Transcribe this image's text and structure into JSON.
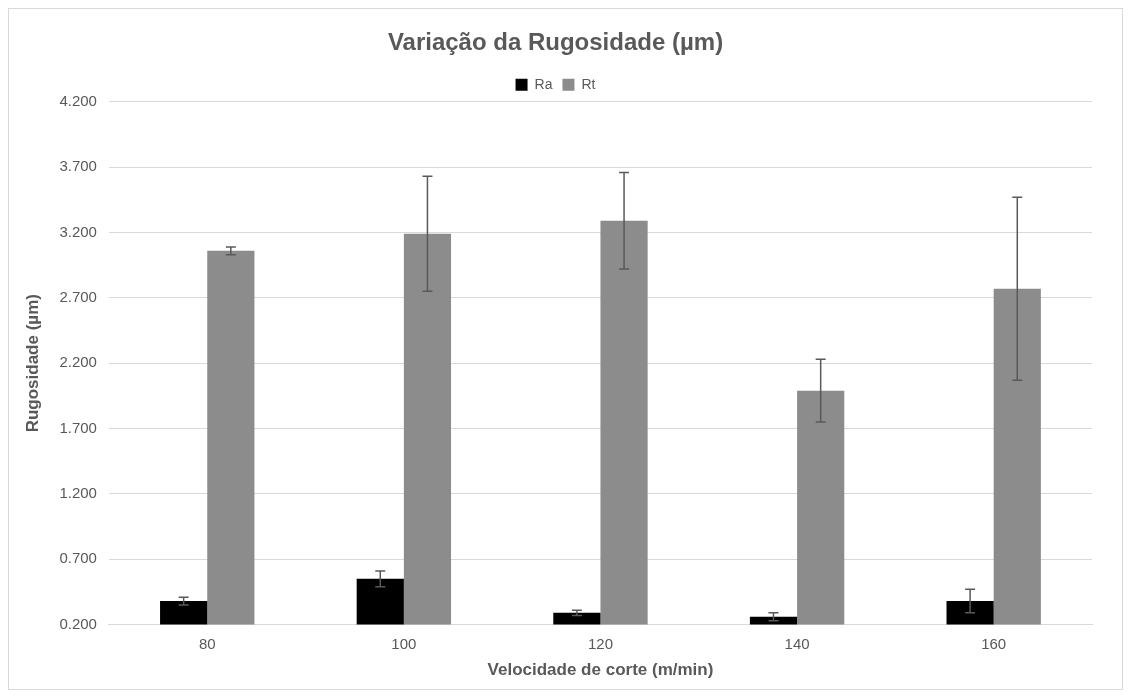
{
  "chart_data": {
    "type": "bar",
    "title": "Variação da Rugosidade (µm)",
    "xlabel": "Velocidade de corte (m/min)",
    "ylabel": "Rugosidade (µm)",
    "categories": [
      "80",
      "100",
      "120",
      "140",
      "160"
    ],
    "series": [
      {
        "name": "Ra",
        "color": "#000000",
        "values": [
          0.38,
          0.55,
          0.29,
          0.26,
          0.38
        ],
        "errors": [
          0.03,
          0.06,
          0.02,
          0.03,
          0.09
        ]
      },
      {
        "name": "Rt",
        "color": "#8c8c8c",
        "values": [
          3.06,
          3.19,
          3.29,
          1.99,
          2.77
        ],
        "errors": [
          0.03,
          0.44,
          0.37,
          0.24,
          0.7
        ]
      }
    ],
    "ylim": [
      0.2,
      4.2
    ],
    "yticks": [
      {
        "value": 0.2,
        "label": "0.200"
      },
      {
        "value": 0.7,
        "label": "0.700"
      },
      {
        "value": 1.2,
        "label": "1.200"
      },
      {
        "value": 1.7,
        "label": "1.700"
      },
      {
        "value": 2.2,
        "label": "2.200"
      },
      {
        "value": 2.7,
        "label": "2.700"
      },
      {
        "value": 3.2,
        "label": "3.200"
      },
      {
        "value": 3.7,
        "label": "3.700"
      },
      {
        "value": 4.2,
        "label": "4.200"
      }
    ],
    "grid": "y",
    "legend": "top"
  }
}
